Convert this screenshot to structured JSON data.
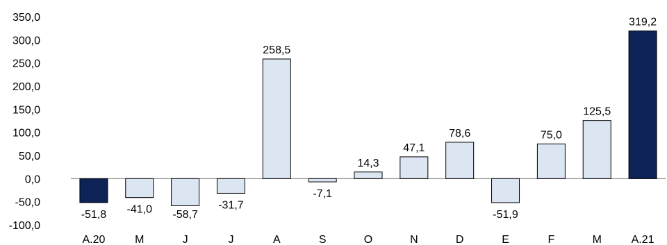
{
  "chart_data": {
    "type": "bar",
    "categories": [
      "A.20",
      "M",
      "J",
      "J",
      "A",
      "S",
      "O",
      "N",
      "D",
      "E",
      "F",
      "M",
      "A.21"
    ],
    "values": [
      -51.8,
      -41.0,
      -58.7,
      -31.7,
      258.5,
      -7.1,
      14.3,
      47.1,
      78.6,
      -51.9,
      75.0,
      125.5,
      319.2
    ],
    "value_labels": [
      "-51,8",
      "-41,0",
      "-58,7",
      "-31,7",
      "258,5",
      "-7,1",
      "14,3",
      "47,1",
      "78,6",
      "-51,9",
      "75,0",
      "125,5",
      "319,2"
    ],
    "highlighted": [
      true,
      false,
      false,
      false,
      false,
      false,
      false,
      false,
      false,
      false,
      false,
      false,
      true
    ],
    "y_ticks": [
      350,
      300,
      250,
      200,
      150,
      100,
      50,
      0,
      -50,
      -100
    ],
    "y_tick_labels": [
      "350,0",
      "300,0",
      "250,0",
      "200,0",
      "150,0",
      "100,0",
      "50,0",
      "0,0",
      "-50,0",
      "-100,0"
    ],
    "ylim": [
      -100,
      350
    ],
    "title": "",
    "xlabel": "",
    "ylabel": "",
    "grid": false,
    "legend": "none",
    "colors": {
      "highlight_bar": "#0d2357",
      "normal_bar": "#dce6f2",
      "bar_stroke": "#000000",
      "axis": "#7f7f7f",
      "text": "#000000"
    }
  }
}
